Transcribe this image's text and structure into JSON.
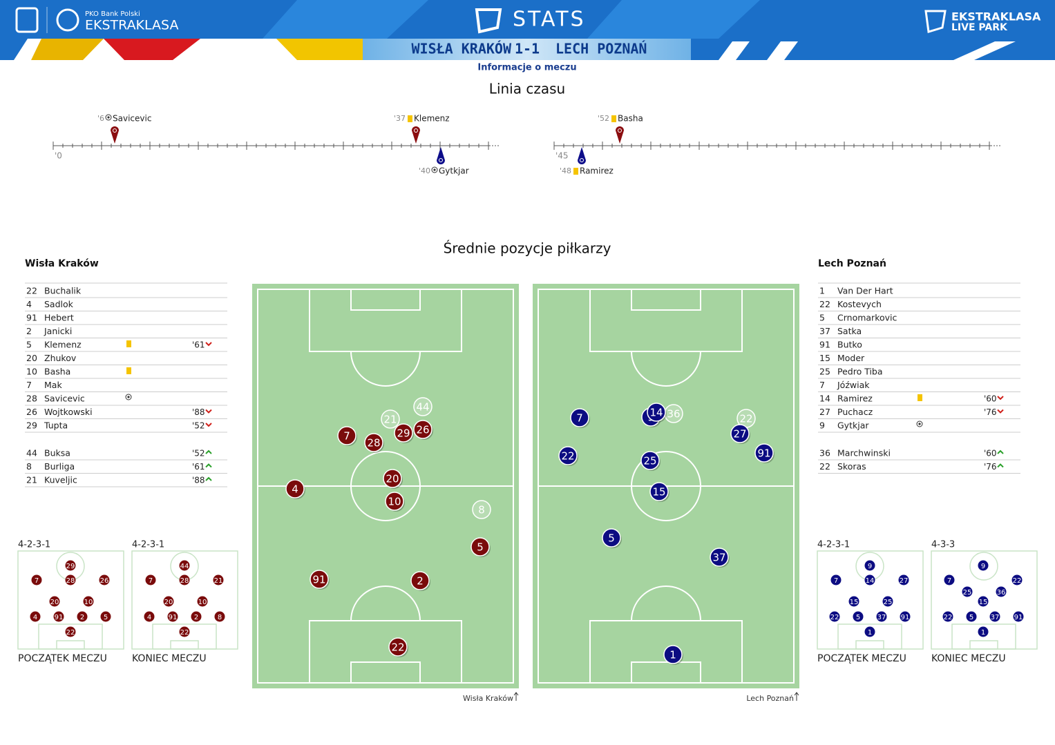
{
  "header": {
    "bank": "PKO Bank Polski",
    "league": "EKSTRAKLASA",
    "stats": "STATS",
    "live_league": "EKSTRAKLASA",
    "live": "LIVE PARK",
    "home": "WISŁA KRAKÓW",
    "score": "1-1",
    "away": "LECH POZNAŃ"
  },
  "subtitle": "Informacje o meczu",
  "timeline": {
    "title": "Linia czasu",
    "start_labels": [
      "'0",
      "'45"
    ],
    "events": [
      {
        "minute": "'6",
        "player": "Savicevic",
        "team": "home",
        "icon": "goal"
      },
      {
        "minute": "'37",
        "player": "Klemenz",
        "team": "home",
        "icon": "yellow"
      },
      {
        "minute": "'40",
        "player": "Gytkjar",
        "team": "away",
        "icon": "goal"
      },
      {
        "minute": "'52",
        "player": "Basha",
        "team": "home",
        "icon": "yellow"
      },
      {
        "minute": "'48",
        "player": "Ramirez",
        "team": "away",
        "icon": "yellow"
      }
    ]
  },
  "positions": {
    "title": "Średnie pozycje piłkarzy",
    "teams": [
      {
        "name": "Wisła Kraków",
        "color": "#7a0b0b",
        "players": [
          {
            "number": 22,
            "name": "Buchalik"
          },
          {
            "number": 4,
            "name": "Sadlok"
          },
          {
            "number": 91,
            "name": "Hebert"
          },
          {
            "number": 2,
            "name": "Janicki"
          },
          {
            "number": 5,
            "name": "Klemenz",
            "card": "yellow",
            "sub": {
              "minute": "'61",
              "dir": "out"
            }
          },
          {
            "number": 20,
            "name": "Zhukov"
          },
          {
            "number": 10,
            "name": "Basha",
            "card": "yellow"
          },
          {
            "number": 7,
            "name": "Mak"
          },
          {
            "number": 28,
            "name": "Savicevic",
            "card": "goal"
          },
          {
            "number": 26,
            "name": "Wojtkowski",
            "sub": {
              "minute": "'88",
              "dir": "out"
            }
          },
          {
            "number": 29,
            "name": "Tupta",
            "sub": {
              "minute": "'52",
              "dir": "out"
            }
          }
        ],
        "subs": [
          {
            "number": 44,
            "name": "Buksa",
            "sub": {
              "minute": "'52",
              "dir": "in"
            }
          },
          {
            "number": 8,
            "name": "Burliga",
            "sub": {
              "minute": "'61",
              "dir": "in"
            }
          },
          {
            "number": 21,
            "name": "Kuveljic",
            "sub": {
              "minute": "'88",
              "dir": "in"
            }
          }
        ],
        "pitch": [
          22,
          2,
          91,
          5,
          4,
          10,
          20,
          7,
          28,
          29,
          26
        ],
        "pitch_subs": [
          44,
          21,
          8
        ],
        "pitch_label": "Wisła Kraków",
        "formations": [
          {
            "label": "4-2-3-1",
            "caption": "POCZĄTEK MECZU",
            "players": [
              29,
              7,
              28,
              26,
              20,
              10,
              4,
              91,
              2,
              5,
              22
            ]
          },
          {
            "label": "4-2-3-1",
            "caption": "KONIEC MECZU",
            "players": [
              44,
              7,
              28,
              21,
              20,
              10,
              4,
              91,
              2,
              8,
              22
            ]
          }
        ]
      },
      {
        "name": "Lech Poznań",
        "color": "#0c0c82",
        "players": [
          {
            "number": 1,
            "name": "Van Der Hart"
          },
          {
            "number": 22,
            "name": "Kostevych"
          },
          {
            "number": 5,
            "name": "Crnomarkovic"
          },
          {
            "number": 37,
            "name": "Satka"
          },
          {
            "number": 91,
            "name": "Butko"
          },
          {
            "number": 15,
            "name": "Moder"
          },
          {
            "number": 25,
            "name": "Pedro Tiba"
          },
          {
            "number": 7,
            "name": "Jóźwiak"
          },
          {
            "number": 14,
            "name": "Ramirez",
            "card": "yellow",
            "sub": {
              "minute": "'60",
              "dir": "out"
            }
          },
          {
            "number": 27,
            "name": "Puchacz",
            "sub": {
              "minute": "'76",
              "dir": "out"
            }
          },
          {
            "number": 9,
            "name": "Gytkjar",
            "card": "goal"
          }
        ],
        "subs": [
          {
            "number": 36,
            "name": "Marchwinski",
            "sub": {
              "minute": "'60",
              "dir": "in"
            }
          },
          {
            "number": 22,
            "name": "Skoras",
            "sub": {
              "minute": "'76",
              "dir": "in"
            }
          }
        ],
        "pitch": [
          1,
          5,
          37,
          15,
          25,
          22,
          91,
          27,
          7,
          9,
          14
        ],
        "pitch_subs": [
          36,
          22
        ],
        "pitch_label": "Lech Poznań",
        "formations": [
          {
            "label": "4-2-3-1",
            "caption": "POCZĄTEK MECZU",
            "players": [
              9,
              7,
              14,
              27,
              15,
              25,
              22,
              5,
              37,
              91,
              1
            ]
          },
          {
            "label": "4-3-3",
            "caption": "KONIEC MECZU",
            "players": [
              9,
              7,
              22,
              25,
              36,
              15,
              22,
              5,
              37,
              91,
              1
            ]
          }
        ]
      }
    ]
  }
}
